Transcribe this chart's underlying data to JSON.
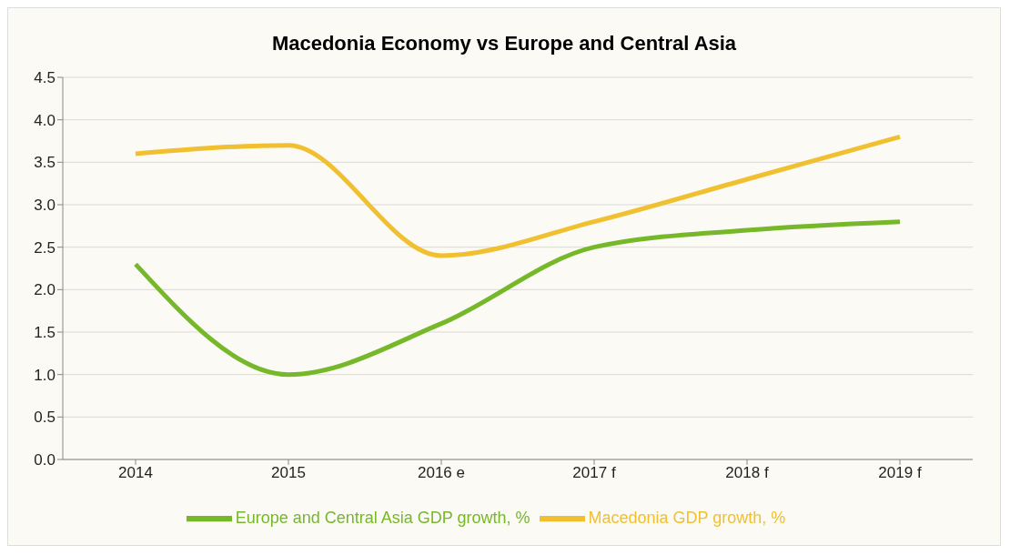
{
  "chart_data": {
    "type": "line",
    "title": "Macedonia Economy vs Europe and Central Asia",
    "categories": [
      "2014",
      "2015",
      "2016 e",
      "2017 f",
      "2018 f",
      "2019 f"
    ],
    "series": [
      {
        "name": "Europe and Central Asia GDP growth, %",
        "color": "#76b82a",
        "values": [
          2.3,
          1.0,
          1.6,
          2.5,
          2.7,
          2.8
        ]
      },
      {
        "name": "Macedonia GDP growth, %",
        "color": "#f0c030",
        "values": [
          3.6,
          3.7,
          2.4,
          2.8,
          3.3,
          3.8
        ]
      }
    ],
    "ylim": [
      0,
      4.5
    ],
    "yticks": [
      {
        "value": 0,
        "label": "0.0"
      },
      0.5,
      {
        "value": 1,
        "label": "1.0"
      },
      1.5,
      {
        "value": 2,
        "label": "2.0"
      },
      2.5,
      {
        "value": 3,
        "label": "3.0"
      },
      3.5,
      {
        "value": 4,
        "label": "4.0"
      },
      4.5
    ],
    "grid": "y",
    "legend": "bottom",
    "marker": "none",
    "line_style": "solid"
  }
}
